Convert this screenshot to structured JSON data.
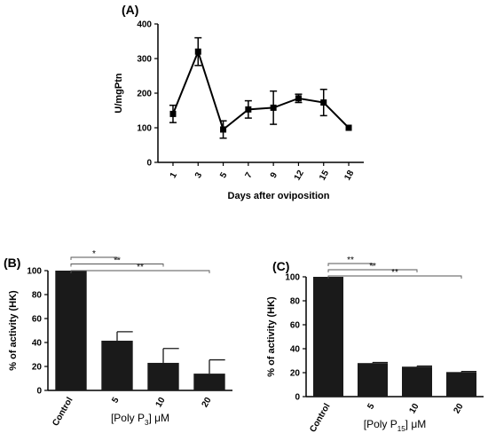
{
  "chart_data": [
    {
      "panel": "(A)",
      "type": "line",
      "xlabel": "Days after oviposition",
      "ylabel": "U/mgPtn",
      "ylim": [
        0,
        400
      ],
      "yticks": [
        "0",
        "100",
        "200",
        "300",
        "400"
      ],
      "categories": [
        "1",
        "3",
        "5",
        "7",
        "9",
        "12",
        "15",
        "18"
      ],
      "series": [
        {
          "values": [
            140,
            320,
            95,
            153,
            158,
            185,
            173,
            100
          ],
          "errors": [
            25,
            40,
            25,
            25,
            48,
            12,
            38,
            0
          ]
        }
      ],
      "grid": false
    },
    {
      "panel": "(B)",
      "type": "bar",
      "xlabel_parts": [
        "[Poly P",
        "3",
        "] μM"
      ],
      "ylabel": "% of activity (HK)",
      "ylim": [
        0,
        100
      ],
      "yticks": [
        "0",
        "20",
        "40",
        "60",
        "80",
        "100"
      ],
      "categories": [
        "Control",
        "5",
        "10",
        "20"
      ],
      "values": [
        100,
        41.5,
        23,
        14
      ],
      "errors": [
        0,
        7.5,
        12,
        11.5
      ],
      "significance": [
        {
          "from": "Control",
          "to": "5",
          "label": "*"
        },
        {
          "from": "Control",
          "to": "10",
          "label": "**"
        },
        {
          "from": "Control",
          "to": "20",
          "label": "**"
        }
      ]
    },
    {
      "panel": "(C)",
      "type": "bar",
      "xlabel_parts": [
        "[Poly P",
        "15",
        "] μM"
      ],
      "ylabel": "% of activity (HK)",
      "ylim": [
        0,
        100
      ],
      "yticks": [
        "0",
        "20",
        "40",
        "60",
        "80",
        "100"
      ],
      "categories": [
        "Control",
        "5",
        "10",
        "20"
      ],
      "values": [
        100,
        28,
        25,
        20.5
      ],
      "errors": [
        0,
        0.5,
        0.5,
        0.5
      ],
      "significance": [
        {
          "from": "Control",
          "to": "5",
          "label": "**"
        },
        {
          "from": "Control",
          "to": "10",
          "label": "**"
        },
        {
          "from": "Control",
          "to": "20",
          "label": "**"
        }
      ]
    }
  ]
}
